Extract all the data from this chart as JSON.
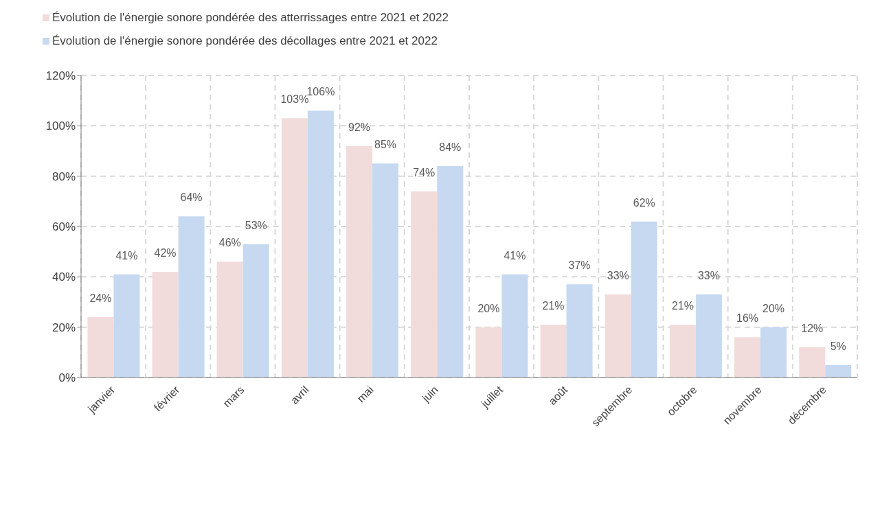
{
  "chart_data": {
    "type": "bar",
    "categories": [
      "janvier",
      "février",
      "mars",
      "avril",
      "mai",
      "juin",
      "juillet",
      "août",
      "septembre",
      "octobre",
      "novembre",
      "décembre"
    ],
    "series": [
      {
        "name": "Évolution de l'énergie sonore pondérée des atterrissages entre 2021 et 2022",
        "color": "#f2dcdb",
        "values": [
          24,
          42,
          46,
          103,
          92,
          74,
          20,
          21,
          33,
          21,
          16,
          12
        ],
        "value_labels": [
          "24%",
          "42%",
          "46%",
          "103%",
          "92%",
          "74%",
          "20%",
          "21%",
          "33%",
          "21%",
          "16%",
          "12%"
        ]
      },
      {
        "name": "Évolution de l'énergie sonore pondérée des décollages entre 2021 et 2022",
        "color": "#c6d9f1",
        "values": [
          41,
          64,
          53,
          106,
          85,
          84,
          41,
          37,
          62,
          33,
          20,
          5
        ],
        "value_labels": [
          "41%",
          "64%",
          "53%",
          "106%",
          "85%",
          "84%",
          "41%",
          "37%",
          "62%",
          "33%",
          "20%",
          "5%"
        ]
      }
    ],
    "ylim": [
      0,
      120
    ],
    "yticks": [
      {
        "value": 0,
        "label": "0%"
      },
      {
        "value": 20,
        "label": "20%"
      },
      {
        "value": 40,
        "label": "40%"
      },
      {
        "value": 60,
        "label": "60%"
      },
      {
        "value": 80,
        "label": "80%"
      },
      {
        "value": 100,
        "label": "100%"
      },
      {
        "value": 120,
        "label": "120%"
      }
    ],
    "grid": true,
    "legend": "top left"
  }
}
